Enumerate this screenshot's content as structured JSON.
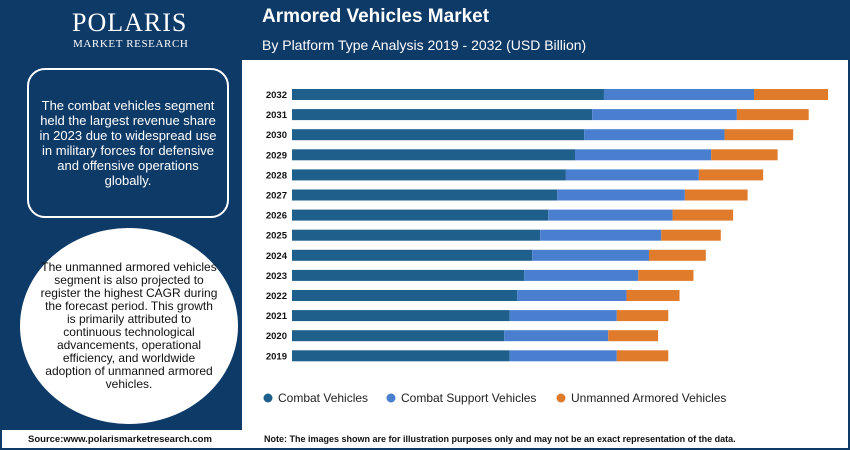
{
  "brand": {
    "name": "POLARIS",
    "tagline": "MARKET RESEARCH"
  },
  "header": {
    "title": "Armored Vehicles Market",
    "subtitle": "By Platform Type Analysis 2019 - 2032 (USD Billion)"
  },
  "sidebar": {
    "highlight_text": "The combat vehicles segment held the largest revenue share in 2023 due to widespread use in military forces for defensive and offensive operations globally.",
    "circle_text": "The unmanned armored vehicles segment is also projected to register the highest CAGR during the forecast period. This growth is primarily attributed to continuous technological advancements, operational efficiency, and worldwide adoption of unmanned armored vehicles."
  },
  "footer": {
    "source": "Source:www.polarismarketresearch.com",
    "note": "Note: The images shown are for illustration purposes only and may not be an exact representation of the data."
  },
  "chart_data": {
    "type": "bar",
    "orientation": "horizontal",
    "stacked": true,
    "categories": [
      "2032",
      "2031",
      "2030",
      "2029",
      "2028",
      "2027",
      "2026",
      "2025",
      "2024",
      "2023",
      "2022",
      "2021",
      "2020",
      "2019"
    ],
    "series": [
      {
        "name": "Combat Vehicles",
        "color": "#1f5f8b",
        "values": [
          58.2,
          56.0,
          54.5,
          52.8,
          51.1,
          49.5,
          47.8,
          46.3,
          44.8,
          43.3,
          42.0,
          40.6,
          39.6,
          40.6
        ]
      },
      {
        "name": "Combat Support Vehicles",
        "color": "#4a7fd0",
        "values": [
          28.0,
          27.0,
          26.2,
          25.4,
          24.8,
          23.8,
          23.2,
          22.6,
          21.8,
          21.3,
          20.4,
          20.0,
          19.4,
          20.0
        ]
      },
      {
        "name": "Unmanned Armored Vehicles",
        "color": "#e07b2b",
        "values": [
          13.8,
          13.4,
          12.8,
          12.4,
          12.0,
          11.7,
          11.3,
          11.1,
          10.6,
          10.3,
          9.9,
          9.6,
          9.3,
          9.6
        ]
      }
    ],
    "xlim": [
      0,
      100
    ],
    "legend_position": "bottom",
    "grid": false,
    "axis_labels_shown": false
  }
}
